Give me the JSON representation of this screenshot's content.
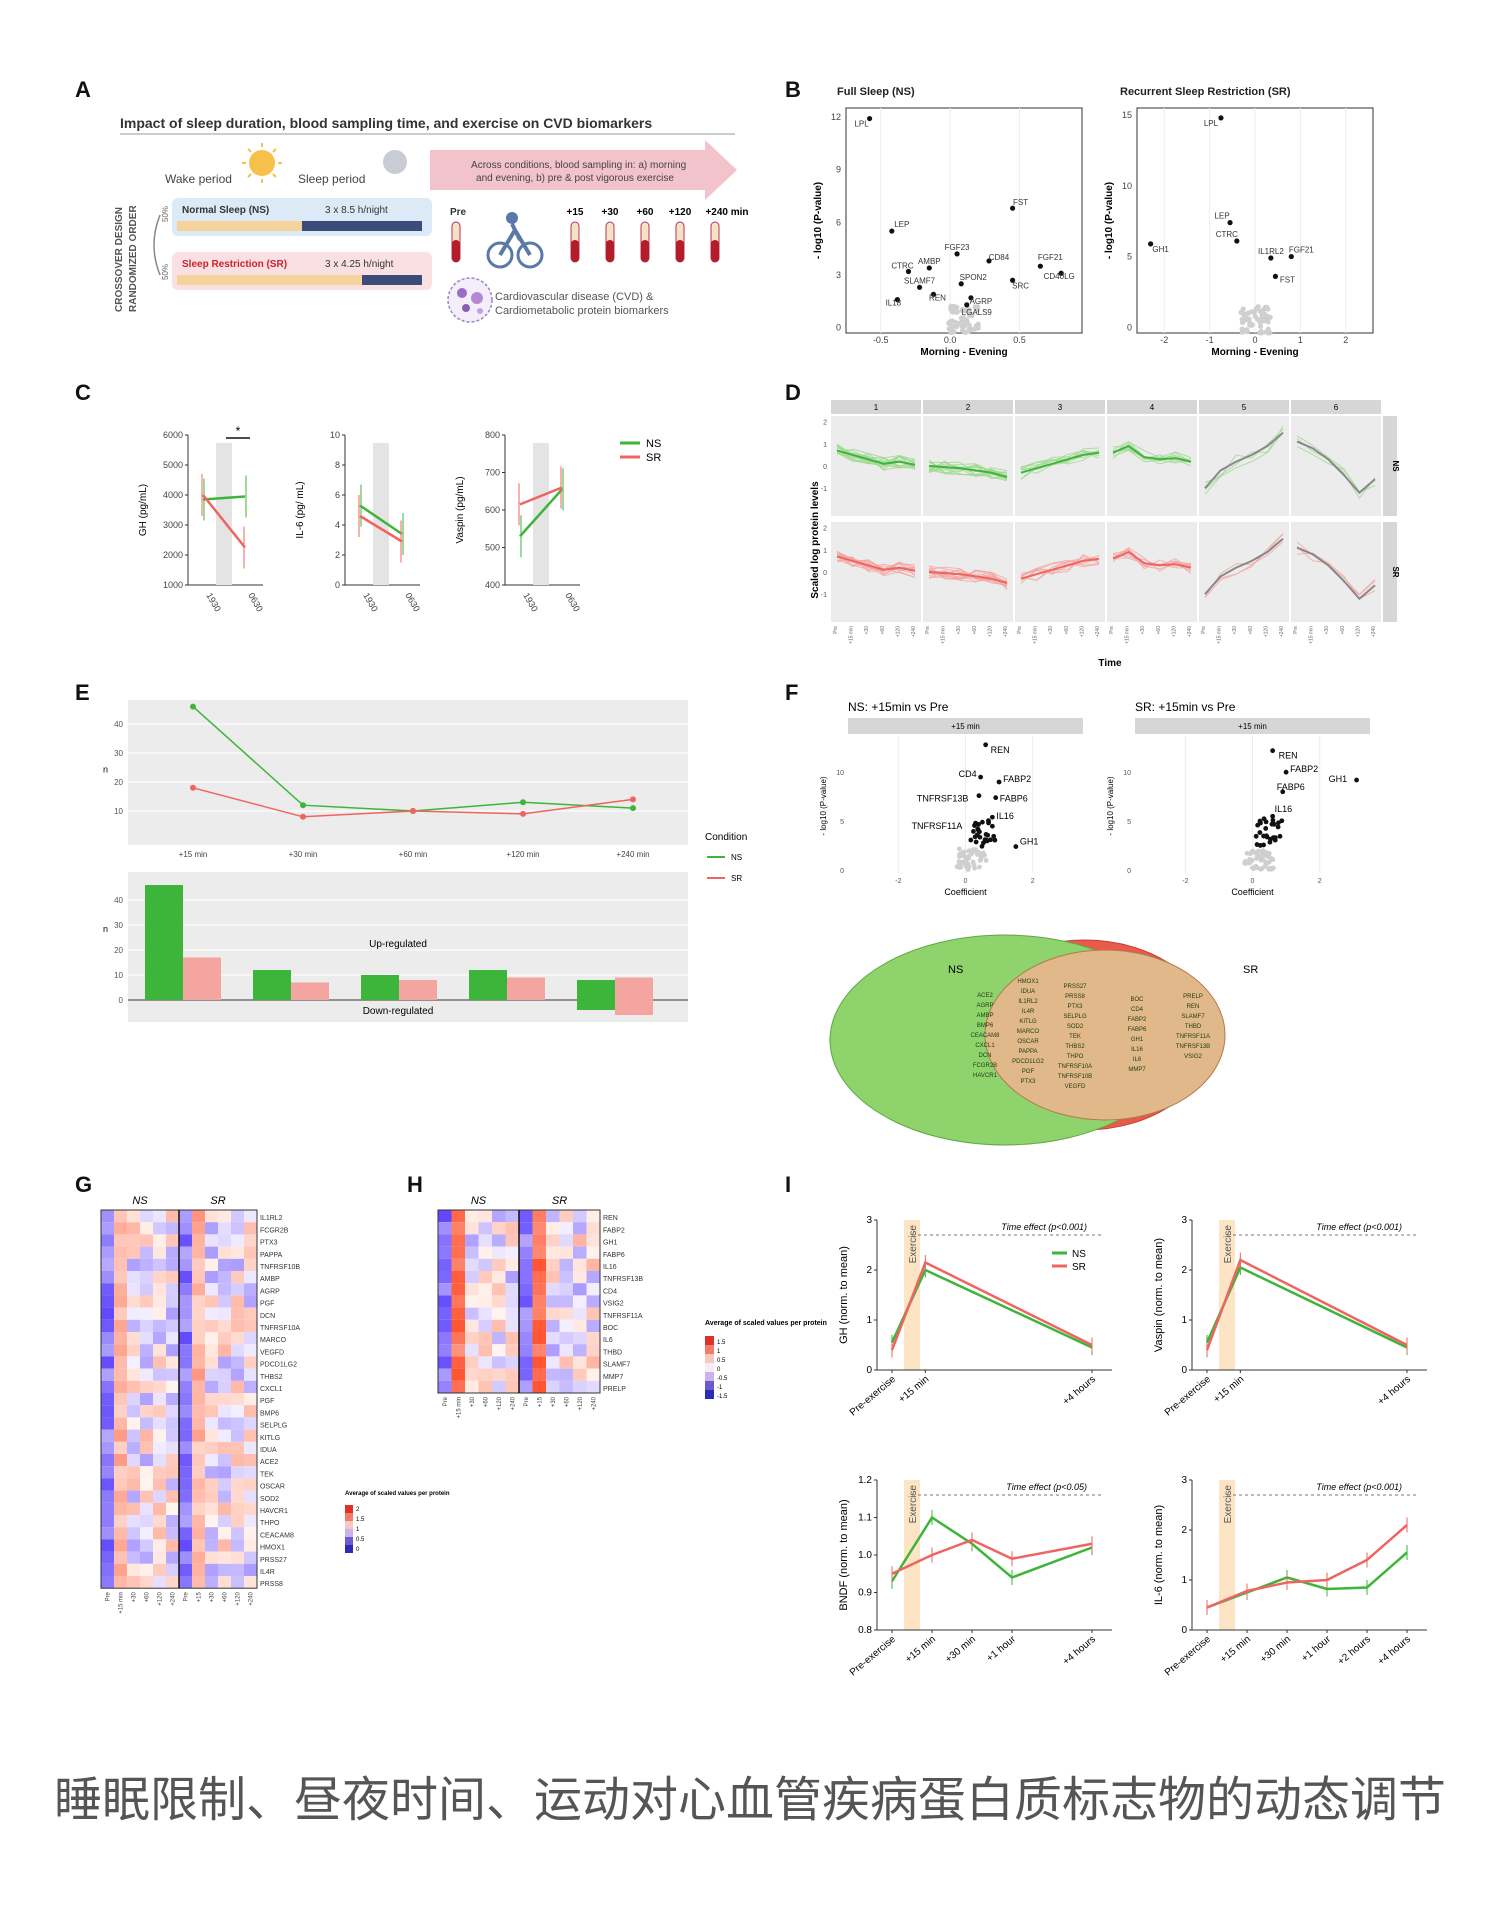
{
  "caption": "睡眠限制、昼夜时间、运动对心血管疾病蛋白质标志物的动态调节",
  "colors": {
    "ns": "#3db53a",
    "sr": "#ef6461",
    "ns_light": "#9fd88e",
    "sr_light": "#f4a5a0",
    "grey": "#cfcfcf",
    "panel_bg": "#ececec",
    "strip": "#d6d6d6"
  },
  "panels": {
    "A": {
      "label": "A",
      "title": "Impact of sleep duration, blood sampling time, and exercise on CVD biomarkers",
      "wake": "Wake period",
      "sleep": "Sleep period",
      "arrow_text": "Across conditions, blood sampling in: a) morning and evening, b) pre & post vigorous exercise",
      "design": "CROSSOVER DESIGN",
      "order": "RANDOMIZED ORDER",
      "pct": "50%",
      "ns_name": "Normal Sleep (NS)",
      "ns_dose": "3 x 8.5 h/night",
      "sr_name": "Sleep Restriction (SR)",
      "sr_dose": "3 x 4.25 h/night",
      "pre": "Pre",
      "times": [
        "+15",
        "+30",
        "+60",
        "+120",
        "+240 min"
      ],
      "biomarkers": "Cardiovascular disease (CVD) & Cardiometabolic protein biomarkers"
    },
    "B": {
      "label": "B",
      "left_title": "Full Sleep (NS)",
      "right_title": "Recurrent Sleep Restriction (SR)",
      "xlabel": "Morning - Evening",
      "ylabel": "- log10 (P-value)",
      "left_xticks": [
        "-0.5",
        "0.0",
        "0.5"
      ],
      "left_yticks": [
        "0",
        "3",
        "6",
        "9",
        "12"
      ],
      "right_xticks": [
        "-2",
        "-1",
        "0",
        "1",
        "2"
      ],
      "right_yticks": [
        "0",
        "5",
        "10",
        "15"
      ],
      "left_labels": [
        "LPL",
        "LEP",
        "FST",
        "FGF23",
        "CTRC",
        "AMBP",
        "CD84",
        "FGF21",
        "SLAMF7",
        "SPON2",
        "CD40LG",
        "IL18",
        "REN",
        "AGRP",
        "SRC",
        "LGALS9"
      ],
      "right_labels": [
        "LPL",
        "GH1",
        "LEP",
        "CTRC",
        "IL1RL2",
        "FGF21",
        "FST"
      ]
    },
    "C": {
      "label": "C",
      "xticks": [
        "1930",
        "0630"
      ],
      "plots": [
        {
          "ylabel": "GH (pg/mL)",
          "yticks": [
            "1000",
            "2000",
            "3000",
            "4000",
            "5000",
            "6000"
          ],
          "ylim": [
            1000,
            6000
          ],
          "ns": [
            3850,
            3950
          ],
          "sr": [
            4000,
            2250
          ],
          "sig": "*"
        },
        {
          "ylabel": "IL-6 (pg/ mL)",
          "yticks": [
            "0",
            "2",
            "4",
            "6",
            "8",
            "10"
          ],
          "ylim": [
            0,
            10
          ],
          "ns": [
            5.3,
            3.4
          ],
          "sr": [
            4.6,
            2.9
          ],
          "sig": ""
        },
        {
          "ylabel": "Vaspin (pg/mL)",
          "yticks": [
            "400",
            "500",
            "600",
            "700",
            "800"
          ],
          "ylim": [
            400,
            800
          ],
          "ns": [
            530,
            655
          ],
          "sr": [
            615,
            660
          ],
          "sig": ""
        }
      ],
      "legend": [
        "NS",
        "SR"
      ]
    },
    "D": {
      "label": "D",
      "clusters": [
        "1",
        "2",
        "3",
        "4",
        "5",
        "6"
      ],
      "rows": [
        "NS",
        "SR"
      ],
      "ylabel": "Scaled log protein levels",
      "xlabel": "Time",
      "yticks": [
        "-1",
        "0",
        "1",
        "2"
      ],
      "xticks": [
        "Pre",
        "+15 min",
        "+30",
        "+60",
        "+120",
        "+240"
      ]
    },
    "E": {
      "label": "E",
      "categories": [
        "+15 min",
        "+30 min",
        "+60 min",
        "+120 min",
        "+240 min"
      ],
      "line_ns": [
        46,
        12,
        10,
        13,
        11
      ],
      "line_sr": [
        18,
        8,
        10,
        9,
        14
      ],
      "up_ns": [
        46,
        12,
        10,
        12,
        8
      ],
      "up_sr": [
        17,
        7,
        8,
        9,
        9
      ],
      "down_ns": [
        0,
        0,
        0,
        0,
        -4
      ],
      "down_sr": [
        0,
        0,
        0,
        0,
        -6
      ],
      "yticks_top": [
        "10",
        "20",
        "30",
        "40"
      ],
      "yticks_bottom": [
        "0",
        "10",
        "20",
        "30",
        "40"
      ],
      "ylabel": "n",
      "up_text": "Up-regulated",
      "down_text": "Down-regulated",
      "legend_title": "Condition",
      "legend": [
        "NS",
        "SR"
      ]
    },
    "F": {
      "label": "F",
      "left_title": "NS: +15min vs Pre",
      "right_title": "SR: +15min vs Pre",
      "strip": "+15 min",
      "xlabel": "Coefficient",
      "ylabel": "- log10 (P-value)",
      "xticks": [
        "-2",
        "0",
        "2"
      ],
      "yticks": [
        "0",
        "5",
        "10"
      ],
      "left_labels": [
        "REN",
        "CD4",
        "FABP2",
        "TNFRSF13B",
        "FABP6",
        "IL16",
        "TNFRSF11A",
        "GH1"
      ],
      "right_labels": [
        "REN",
        "FABP2",
        "FABP6",
        "GH1",
        "IL16"
      ],
      "venn_ns": "NS",
      "venn_sr": "SR",
      "ns_only_col1": [
        "ACE2",
        "AGRP",
        "AMBP",
        "BMP6",
        "CEACAM8",
        "CXCL1",
        "DCN",
        "FCGR2B",
        "HAVCR1"
      ],
      "ns_only_col2": [
        "HMOX1",
        "IDUA",
        "IL1RL2",
        "IL4R",
        "KITLG",
        "MARCO",
        "OSCAR",
        "PAPPA",
        "PDCD1LG2",
        "PGF",
        "PTX3"
      ],
      "ns_only_col3": [
        "PRSS27",
        "PRSS8",
        "PTX3",
        "SELPLG",
        "SOD2",
        "TEK",
        "THBS2",
        "THPO",
        "TNFRSF10A",
        "TNFRSF10B",
        "VEGFD"
      ],
      "shared_col1": [
        "BOC",
        "CD4",
        "FABP2",
        "FABP6",
        "GH1",
        "IL16",
        "IL6",
        "MMP7"
      ],
      "shared_col2": [
        "PRELP",
        "REN",
        "SLAMF7",
        "THBD",
        "TNFRSF11A",
        "TNFRSF13B",
        "VSIG2"
      ],
      "sr_only": [
        "LPL",
        "CBLN",
        "SERPINA12"
      ]
    },
    "G": {
      "label": "G",
      "groups": [
        "NS",
        "SR"
      ],
      "proteins": [
        "IL1RL2",
        "FCGR2B",
        "PTX3",
        "PAPPA",
        "TNFRSF10B",
        "AMBP",
        "AGRP",
        "PGF",
        "DCN",
        "TNFRSF10A",
        "MARCO",
        "VEGFD",
        "PDCD1LG2",
        "THBS2",
        "CXCL1",
        "PGF",
        "BMP6",
        "SELPLG",
        "KITLG",
        "IDUA",
        "ACE2",
        "TEK",
        "OSCAR",
        "SOD2",
        "HAVCR1",
        "THPO",
        "CEACAM8",
        "HMOX1",
        "PRSS27",
        "IL4R",
        "PRSS8"
      ],
      "times": [
        "Pre",
        "+15 min",
        "+30",
        "+60",
        "+120",
        "+240",
        "Pre",
        "+15",
        "+30",
        "+60",
        "+120",
        "+240"
      ],
      "legend_title": "Average of scaled values per protein",
      "legend_ticks": [
        "2",
        "1.5",
        "1",
        "0.5",
        "0"
      ]
    },
    "H": {
      "label": "H",
      "groups": [
        "NS",
        "SR"
      ],
      "proteins": [
        "REN",
        "FABP2",
        "GH1",
        "FABP6",
        "IL16",
        "TNFRSF13B",
        "CD4",
        "VSIG2",
        "TNFRSF11A",
        "BOC",
        "IL6",
        "THBD",
        "SLAMF7",
        "MMP7",
        "PRELP"
      ],
      "times": [
        "Pre",
        "+15 min",
        "+30",
        "+60",
        "+120",
        "+240",
        "Pre",
        "+15",
        "+30",
        "+60",
        "+120",
        "+240"
      ],
      "legend_title": "Average of scaled values per protein",
      "legend_ticks": [
        "1.5",
        "1",
        "0.5",
        "0",
        "-0.5",
        "-1",
        "-1.5"
      ]
    },
    "I": {
      "label": "I",
      "exercise": "Exercise",
      "legend": [
        "NS",
        "SR"
      ],
      "plots": [
        {
          "ylabel": "GH (norm. to mean)",
          "effect": "Time effect (p<0.001)",
          "xticks": [
            "Pre-exercise",
            "+15 min",
            "+4 hours"
          ],
          "x": [
            0,
            1,
            6
          ],
          "ylim": [
            0,
            3
          ],
          "yticks": [
            "0",
            "1",
            "2",
            "3"
          ],
          "ns": [
            0.55,
            2.0,
            0.45
          ],
          "sr": [
            0.4,
            2.15,
            0.5
          ]
        },
        {
          "ylabel": "Vaspin (norm. to mean)",
          "effect": "Time effect (p<0.001)",
          "xticks": [
            "Pre-exercise",
            "+15 min",
            "+4 hours"
          ],
          "x": [
            0,
            1,
            6
          ],
          "ylim": [
            0,
            3
          ],
          "yticks": [
            "0",
            "1",
            "2",
            "3"
          ],
          "ns": [
            0.55,
            2.05,
            0.45
          ],
          "sr": [
            0.4,
            2.2,
            0.5
          ]
        },
        {
          "ylabel": "BNDF (norm. to mean)",
          "effect": "Time effect (p<0.05)",
          "xticks": [
            "Pre-exercise",
            "+15 min",
            "+30 min",
            "+1 hour",
            "+4 hours"
          ],
          "x": [
            0,
            1,
            2,
            3,
            5
          ],
          "ylim": [
            0.8,
            1.2
          ],
          "yticks": [
            "0.8",
            "0.9",
            "1.0",
            "1.1",
            "1.2"
          ],
          "ns": [
            0.93,
            1.1,
            1.03,
            0.94,
            1.02
          ],
          "sr": [
            0.95,
            1.0,
            1.04,
            0.99,
            1.03
          ]
        },
        {
          "ylabel": "IL-6 (norm. to mean)",
          "effect": "Time effect (p<0.001)",
          "xticks": [
            "Pre-exercise",
            "+15 min",
            "+30 min",
            "+1 hour",
            "+2 hours",
            "+4 hours"
          ],
          "x": [
            0,
            1,
            2,
            3,
            4,
            5
          ],
          "ylim": [
            0,
            3
          ],
          "yticks": [
            "0",
            "1",
            "2",
            "3"
          ],
          "ns": [
            0.45,
            0.75,
            1.05,
            0.82,
            0.85,
            1.55
          ],
          "sr": [
            0.45,
            0.78,
            0.95,
            1.0,
            1.4,
            2.1
          ]
        }
      ]
    }
  }
}
